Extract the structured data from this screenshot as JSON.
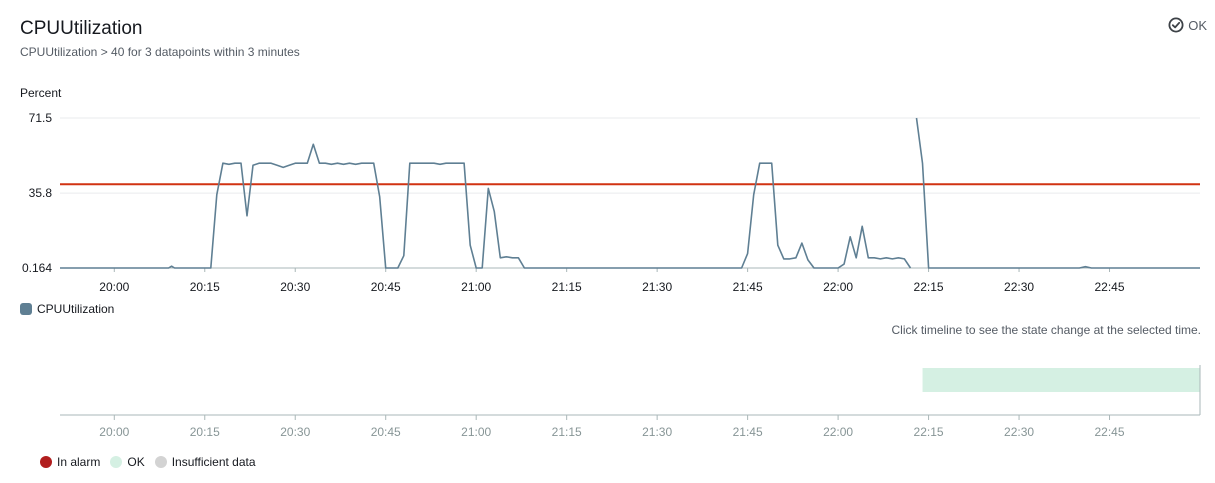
{
  "header": {
    "title": "CPUUtilization",
    "subtitle": "CPUUtilization > 40 for 3 datapoints within 3 minutes",
    "status_label": "OK"
  },
  "chart_data": [
    {
      "type": "line",
      "ylabel": "Percent",
      "y_ticks": [
        "71.5",
        "35.8",
        "0.164"
      ],
      "ylim": [
        0.164,
        71.5
      ],
      "x_ticks": [
        "20:00",
        "20:15",
        "20:30",
        "20:45",
        "21:00",
        "21:15",
        "21:30",
        "21:45",
        "22:00",
        "22:15",
        "22:30",
        "22:45"
      ],
      "xlim": [
        "19:51",
        "23:00"
      ],
      "threshold": {
        "value": 40,
        "color": "#d13212"
      },
      "grid": true,
      "legend_position": "bottom-left",
      "series": [
        {
          "name": "CPUUtilization",
          "color": "#5f7f93",
          "segments": [
            [
              [
                "19:51",
                0.164
              ],
              [
                "20:09",
                0.164
              ],
              [
                "20:09:30",
                1.0
              ],
              [
                "20:10",
                0.164
              ],
              [
                "20:16",
                0.164
              ],
              [
                "20:17",
                35
              ],
              [
                "20:18",
                50
              ],
              [
                "20:19",
                49.5
              ],
              [
                "20:20",
                50
              ],
              [
                "20:21",
                50
              ],
              [
                "20:22",
                25
              ],
              [
                "20:23",
                49
              ],
              [
                "20:24",
                50
              ],
              [
                "20:25",
                50
              ],
              [
                "20:26",
                50
              ],
              [
                "20:27",
                49
              ],
              [
                "20:28",
                48
              ],
              [
                "20:29",
                49
              ],
              [
                "20:30",
                50
              ],
              [
                "20:31",
                50
              ],
              [
                "20:32",
                50
              ],
              [
                "20:33",
                59
              ],
              [
                "20:34",
                50
              ],
              [
                "20:35",
                50
              ],
              [
                "20:36",
                49.5
              ],
              [
                "20:37",
                50
              ],
              [
                "20:38",
                49.5
              ],
              [
                "20:39",
                50
              ],
              [
                "20:40",
                49.5
              ],
              [
                "20:41",
                50
              ],
              [
                "20:42",
                50
              ],
              [
                "20:43",
                50
              ],
              [
                "20:44",
                34
              ],
              [
                "20:45",
                0.164
              ],
              [
                "20:46",
                0.164
              ],
              [
                "20:47",
                0.164
              ],
              [
                "20:48",
                6
              ],
              [
                "20:49",
                50
              ],
              [
                "20:50",
                50
              ],
              [
                "20:51",
                50
              ],
              [
                "20:52",
                50
              ],
              [
                "20:53",
                50
              ],
              [
                "20:54",
                49.5
              ],
              [
                "20:55",
                50
              ],
              [
                "20:56",
                50
              ],
              [
                "20:57",
                50
              ],
              [
                "20:58",
                50
              ],
              [
                "20:59",
                11
              ],
              [
                "21:00",
                0.164
              ],
              [
                "21:01",
                0.164
              ],
              [
                "21:02",
                38
              ],
              [
                "21:03",
                27
              ],
              [
                "21:04",
                5
              ],
              [
                "21:05",
                5.5
              ],
              [
                "21:06",
                5
              ],
              [
                "21:07",
                5
              ],
              [
                "21:08",
                0.164
              ],
              [
                "21:44",
                0.164
              ],
              [
                "21:45",
                7
              ],
              [
                "21:46",
                35
              ],
              [
                "21:47",
                50
              ],
              [
                "21:48",
                50
              ],
              [
                "21:49",
                50
              ],
              [
                "21:50",
                11
              ],
              [
                "21:51",
                4.5
              ],
              [
                "21:52",
                4.5
              ],
              [
                "21:53",
                5
              ],
              [
                "21:54",
                12
              ],
              [
                "21:55",
                4
              ],
              [
                "21:56",
                0.164
              ],
              [
                "21:57",
                0.164
              ],
              [
                "21:58",
                0.164
              ],
              [
                "21:59",
                0.164
              ],
              [
                "22:00",
                0.164
              ],
              [
                "22:01",
                2
              ],
              [
                "22:02",
                15
              ],
              [
                "22:03",
                5
              ],
              [
                "22:04",
                20
              ],
              [
                "22:05",
                5
              ],
              [
                "22:06",
                5
              ],
              [
                "22:07",
                4.5
              ],
              [
                "22:08",
                5
              ],
              [
                "22:09",
                4.5
              ],
              [
                "22:10",
                5
              ],
              [
                "22:11",
                4.5
              ],
              [
                "22:12",
                0.164
              ]
            ],
            [
              [
                "22:13",
                71.5
              ],
              [
                "22:14",
                50
              ],
              [
                "22:15",
                0.164
              ],
              [
                "22:40",
                0.164
              ],
              [
                "22:41",
                0.8
              ],
              [
                "22:42",
                0.164
              ],
              [
                "23:00",
                0.164
              ]
            ]
          ]
        }
      ]
    },
    {
      "type": "timeline",
      "x_ticks": [
        "20:00",
        "20:15",
        "20:30",
        "20:45",
        "21:00",
        "21:15",
        "21:30",
        "21:45",
        "22:00",
        "22:15",
        "22:30",
        "22:45"
      ],
      "xlim": [
        "19:51",
        "23:00"
      ],
      "states": [
        {
          "state": "OK",
          "start": "22:14",
          "end": "23:00"
        }
      ]
    }
  ],
  "legends": {
    "metric": {
      "label": "CPUUtilization",
      "color": "#5f7f93"
    },
    "states": [
      {
        "label": "In alarm",
        "color": "#b11e1e"
      },
      {
        "label": "OK",
        "color": "#d5f0e3"
      },
      {
        "label": "Insufficient data",
        "color": "#d3d3d3"
      }
    ]
  },
  "timeline_hint": "Click timeline to see the state change at the selected time."
}
